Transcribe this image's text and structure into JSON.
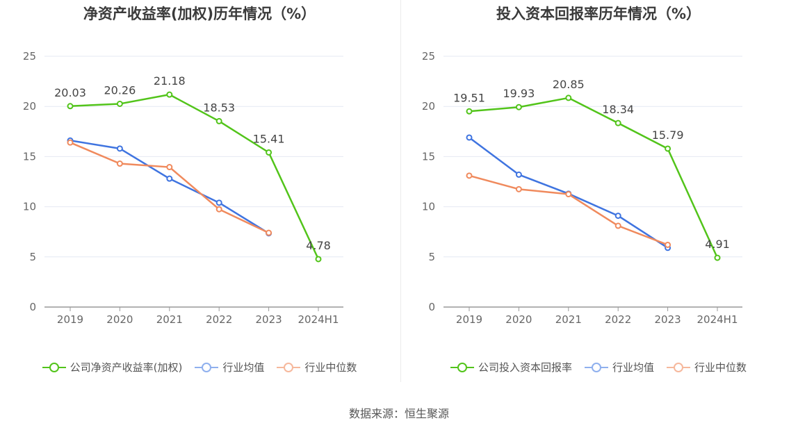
{
  "source_label": "数据来源：恒生聚源",
  "colors": {
    "company": "#52c41a",
    "avg": "#3f74e0",
    "median": "#f08a5d",
    "grid": "#e4e8f3",
    "axis": "#999999"
  },
  "chart_data": [
    {
      "type": "line",
      "title": "净资产收益率(加权)历年情况（%）",
      "categories": [
        "2019",
        "2020",
        "2021",
        "2022",
        "2023",
        "2024H1"
      ],
      "ylim": [
        0,
        25
      ],
      "yticks": [
        0,
        5,
        10,
        15,
        20,
        25
      ],
      "grid": true,
      "legend": "bottom",
      "series": [
        {
          "name": "公司净资产收益率(加权)",
          "key": "company",
          "values": [
            20.03,
            20.26,
            21.18,
            18.53,
            15.41,
            4.78
          ],
          "labels": [
            "20.03",
            "20.26",
            "21.18",
            "18.53",
            "15.41",
            "4.78"
          ]
        },
        {
          "name": "行业均值",
          "key": "avg",
          "values": [
            16.6,
            15.8,
            12.8,
            10.4,
            7.35,
            null
          ]
        },
        {
          "name": "行业中位数",
          "key": "median",
          "values": [
            16.4,
            14.3,
            13.95,
            9.75,
            7.4,
            null
          ]
        }
      ]
    },
    {
      "type": "line",
      "title": "投入资本回报率历年情况（%）",
      "categories": [
        "2019",
        "2020",
        "2021",
        "2022",
        "2023",
        "2024H1"
      ],
      "ylim": [
        0,
        25
      ],
      "yticks": [
        0,
        5,
        10,
        15,
        20,
        25
      ],
      "grid": true,
      "legend": "bottom",
      "series": [
        {
          "name": "公司投入资本回报率",
          "key": "company",
          "values": [
            19.51,
            19.93,
            20.85,
            18.34,
            15.79,
            4.91
          ],
          "labels": [
            "19.51",
            "19.93",
            "20.85",
            "18.34",
            "15.79",
            "4.91"
          ]
        },
        {
          "name": "行业均值",
          "key": "avg",
          "values": [
            16.9,
            13.2,
            11.3,
            9.1,
            5.9,
            null
          ]
        },
        {
          "name": "行业中位数",
          "key": "median",
          "values": [
            13.1,
            11.75,
            11.25,
            8.1,
            6.2,
            null
          ]
        }
      ]
    }
  ]
}
